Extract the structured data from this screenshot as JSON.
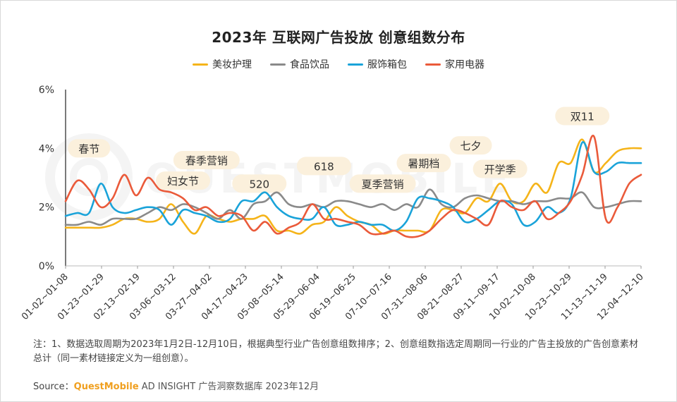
{
  "chart_data": {
    "type": "line",
    "title": "2023年 互联网广告投放 创意组数分布",
    "ylim": [
      0,
      6
    ],
    "yticks": [
      "0%",
      "2%",
      "4%",
      "6%"
    ],
    "x_tick_labels": [
      "01-02~01-08",
      "01-23~01-29",
      "02-13~02-19",
      "03-06~03-12",
      "03-27~04-02",
      "04-17~04-23",
      "05-08~05-14",
      "05-29~06-04",
      "06-19~06-25",
      "07-10~07-16",
      "07-31~08-06",
      "08-21~08-27",
      "09-11~09-17",
      "10-02~10-08",
      "10-23~10-29",
      "11-13~11-19",
      "12-04~12-10"
    ],
    "x_count": 50,
    "series": [
      {
        "name": "美妆护理",
        "color": "#f5b41a",
        "values": [
          1.3,
          1.3,
          1.3,
          1.3,
          1.4,
          1.6,
          1.6,
          1.5,
          1.6,
          2.1,
          1.5,
          1.1,
          1.7,
          1.6,
          1.5,
          1.6,
          1.6,
          1.7,
          1.2,
          1.2,
          1.1,
          1.4,
          1.5,
          2.0,
          1.7,
          1.5,
          1.4,
          1.1,
          1.2,
          1.2,
          1.2,
          1.2,
          1.9,
          1.9,
          1.8,
          2.3,
          2.2,
          2.8,
          2.2,
          2.2,
          2.8,
          2.5,
          3.5,
          3.5,
          4.3,
          3.2,
          3.5,
          3.9,
          4.0,
          4.0
        ]
      },
      {
        "name": "食品饮品",
        "color": "#8a8a8a",
        "values": [
          1.4,
          1.4,
          1.5,
          1.4,
          1.6,
          1.6,
          1.6,
          1.8,
          2.0,
          1.9,
          2.1,
          2.0,
          1.8,
          1.6,
          1.9,
          1.6,
          2.1,
          2.2,
          2.5,
          2.1,
          2.0,
          2.1,
          2.0,
          2.2,
          2.2,
          2.1,
          2.0,
          2.1,
          1.9,
          2.1,
          2.0,
          2.6,
          2.1,
          2.0,
          2.3,
          2.4,
          2.3,
          2.2,
          2.2,
          2.1,
          2.2,
          2.2,
          2.3,
          2.3,
          2.5,
          2.0,
          2.0,
          2.1,
          2.2,
          2.2
        ]
      },
      {
        "name": "服饰箱包",
        "color": "#1aa3d9",
        "values": [
          1.7,
          1.8,
          1.8,
          2.8,
          2.0,
          1.8,
          1.9,
          2.0,
          1.9,
          1.4,
          1.9,
          1.8,
          1.7,
          1.5,
          1.6,
          2.2,
          2.2,
          2.5,
          2.0,
          1.7,
          1.6,
          1.6,
          2.0,
          1.4,
          1.4,
          1.5,
          1.4,
          1.4,
          1.2,
          1.5,
          2.3,
          2.3,
          2.2,
          2.0,
          1.5,
          1.6,
          1.9,
          2.2,
          2.1,
          1.4,
          1.5,
          2.0,
          1.8,
          2.3,
          4.2,
          3.2,
          3.2,
          3.5,
          3.5,
          3.5
        ]
      },
      {
        "name": "家用电器",
        "color": "#ea5a3a",
        "values": [
          2.2,
          2.9,
          2.6,
          2.0,
          2.3,
          3.1,
          2.4,
          3.0,
          2.6,
          2.5,
          2.3,
          1.9,
          2.0,
          1.7,
          1.8,
          1.7,
          1.2,
          1.5,
          1.1,
          1.3,
          1.5,
          2.1,
          1.6,
          1.6,
          1.5,
          1.4,
          1.1,
          1.1,
          1.2,
          1.0,
          1.0,
          1.2,
          1.6,
          1.9,
          1.8,
          1.6,
          1.4,
          2.2,
          2.0,
          1.9,
          2.2,
          1.6,
          1.8,
          2.2,
          3.1,
          4.4,
          1.6,
          2.0,
          2.8,
          3.1
        ]
      }
    ],
    "annotations": [
      {
        "label": "春节",
        "x": 2,
        "y": 4.0
      },
      {
        "label": "妇女节",
        "x": 10,
        "y": 2.9
      },
      {
        "label": "春季营销",
        "x": 12,
        "y": 3.6
      },
      {
        "label": "520",
        "x": 16.5,
        "y": 2.8
      },
      {
        "label": "618",
        "x": 22,
        "y": 3.4
      },
      {
        "label": "夏季营销",
        "x": 27,
        "y": 2.8
      },
      {
        "label": "暑期档",
        "x": 30.5,
        "y": 3.5
      },
      {
        "label": "七夕",
        "x": 34.5,
        "y": 4.1
      },
      {
        "label": "开学季",
        "x": 37,
        "y": 3.3
      },
      {
        "label": "双11",
        "x": 44,
        "y": 5.1
      }
    ]
  },
  "legend": [
    "美妆护理",
    "食品饮品",
    "服饰箱包",
    "家用电器"
  ],
  "note": "注：1、数据选取周期为2023年1月2日-12月10日，根据典型行业广告创意组数排序；2、创意组数指选定周期同一行业的广告主投放的广告创意素材总计（同一素材链接定义为一组创意）。",
  "source": {
    "prefix": "Source：",
    "brand": "QuestMobile",
    "suffix": " AD INSIGHT 广告洞察数据库 2023年12月"
  },
  "watermark": "QUESTMOBILE"
}
